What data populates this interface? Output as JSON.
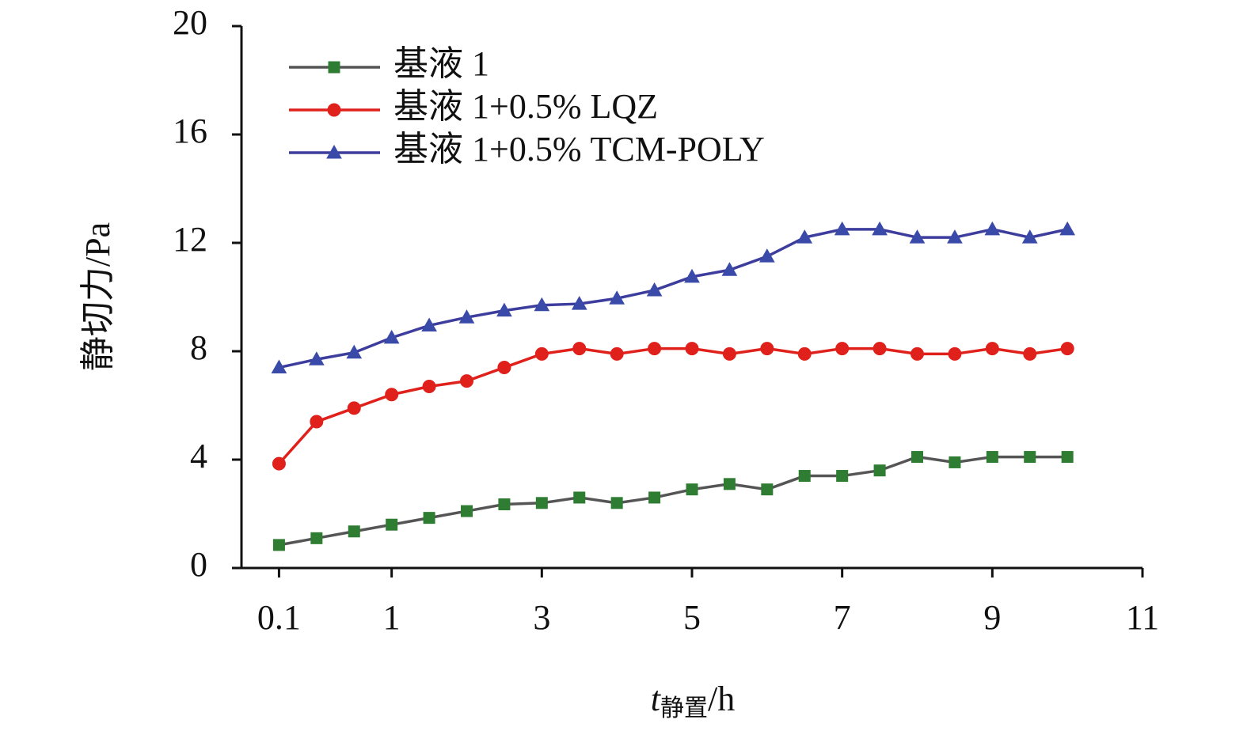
{
  "chart_data": {
    "type": "line",
    "y_label": "静切力/Pa",
    "x_label": {
      "var": "t",
      "sub": "静置",
      "unit": "/h"
    },
    "categories": [
      "0.1",
      null,
      null,
      "1",
      null,
      null,
      null,
      "3",
      null,
      null,
      null,
      "5",
      null,
      null,
      null,
      "7",
      null,
      null,
      null,
      "9",
      null,
      null,
      null,
      "11"
    ],
    "series": [
      {
        "name": "基液 1",
        "color": "#2e7d32",
        "line_color": "#555555",
        "marker": "square",
        "values": [
          0.85,
          1.1,
          1.35,
          1.6,
          1.85,
          2.1,
          2.35,
          2.4,
          2.6,
          2.4,
          2.6,
          2.9,
          3.1,
          2.9,
          3.4,
          3.4,
          3.6,
          4.1,
          3.9,
          4.1,
          4.1,
          4.1,
          null,
          null
        ]
      },
      {
        "name": "基液 1+0.5% LQZ",
        "color": "#e0201b",
        "line_color": "#e0201b",
        "marker": "circle",
        "values": [
          3.85,
          5.4,
          5.9,
          6.4,
          6.7,
          6.9,
          7.4,
          7.9,
          8.1,
          7.9,
          8.1,
          8.1,
          7.9,
          8.1,
          7.9,
          8.1,
          8.1,
          7.9,
          7.9,
          8.1,
          7.9,
          8.1,
          null,
          null
        ]
      },
      {
        "name": "基液 1+0.5% TCM-POLY",
        "color": "#3a4aa8",
        "line_color": "#3d3d9e",
        "marker": "triangle",
        "values": [
          7.4,
          7.7,
          7.95,
          8.5,
          8.95,
          9.25,
          9.5,
          9.7,
          9.75,
          9.95,
          10.25,
          10.75,
          11.0,
          11.5,
          12.2,
          12.5,
          12.5,
          12.2,
          12.2,
          12.5,
          12.2,
          12.5,
          null,
          null
        ]
      }
    ],
    "ylim": [
      0,
      20
    ],
    "yticks": [
      0,
      4,
      8,
      12,
      16,
      20
    ],
    "legend": "upper left"
  }
}
